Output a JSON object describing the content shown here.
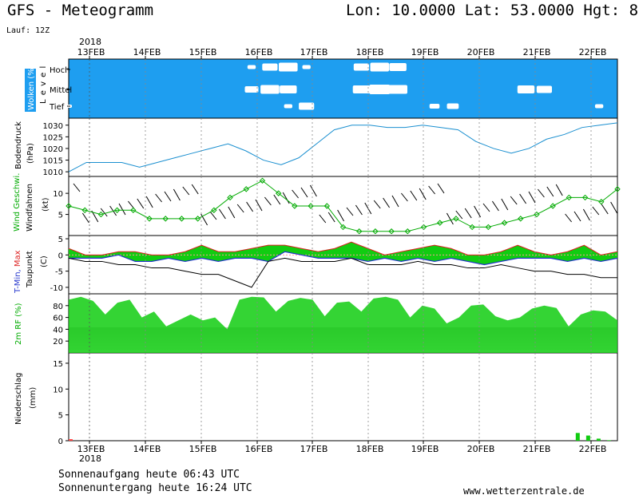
{
  "header": {
    "title": "GFS - Meteogramm",
    "location": "Lon: 10.0000 Lat: 53.0000 Hgt: 8",
    "run": "Lauf: 12Z"
  },
  "footer": {
    "sunrise": "Sonnenaufgang heute 06:43 UTC",
    "sunset": "Sonnenuntergang heute 16:24 UTC",
    "site": "www.wetterzentrale.de"
  },
  "colors": {
    "clouds_bg": "#1e9ef0",
    "line": "#1a8fd0",
    "green": "#11cc11",
    "green_dark": "#00aa00",
    "tmin": "#2233cc",
    "tmax": "#dd2222"
  },
  "time_axis": {
    "year": "2018",
    "dates": [
      "13FEB",
      "14FEB",
      "15FEB",
      "16FEB",
      "17FEB",
      "18FEB",
      "19FEB",
      "20FEB",
      "21FEB",
      "22FEB"
    ],
    "steps": 31
  },
  "chart_data": [
    {
      "type": "heatmap",
      "ylabel": "Wolken (%)",
      "levels": [
        "Hoch",
        "Mittel",
        "Tief"
      ],
      "side_label": "L e v e l",
      "series": [
        {
          "name": "Hoch",
          "values": [
            0,
            0,
            0,
            0,
            0,
            0,
            0,
            0,
            0,
            0,
            20,
            60,
            80,
            20,
            0,
            0,
            60,
            80,
            70,
            0,
            0,
            0,
            0,
            0,
            0,
            0,
            0,
            0,
            0,
            0,
            0
          ]
        },
        {
          "name": "Mittel",
          "values": [
            0,
            0,
            0,
            0,
            0,
            0,
            0,
            0,
            0,
            0,
            50,
            80,
            70,
            0,
            0,
            0,
            70,
            90,
            80,
            0,
            0,
            0,
            0,
            0,
            0,
            70,
            60,
            0,
            0,
            0,
            0
          ]
        },
        {
          "name": "Tief",
          "values": [
            10,
            0,
            0,
            0,
            0,
            0,
            0,
            0,
            0,
            0,
            0,
            0,
            20,
            60,
            0,
            0,
            0,
            0,
            0,
            0,
            30,
            40,
            0,
            0,
            0,
            0,
            0,
            0,
            0,
            20,
            0
          ]
        }
      ]
    },
    {
      "type": "line",
      "ylabel": "Bodendruck",
      "yunit": "(hPa)",
      "yticks": [
        1010,
        1015,
        1020,
        1025,
        1030
      ],
      "ylim": [
        1008,
        1033
      ],
      "values": [
        1010,
        1014,
        1014,
        1014,
        1012,
        1014,
        1016,
        1018,
        1020,
        1022,
        1019,
        1015,
        1013,
        1016,
        1022,
        1028,
        1030,
        1030,
        1029,
        1029,
        1030,
        1029,
        1028,
        1023,
        1020,
        1018,
        1020,
        1024,
        1026,
        1029,
        1030,
        1031
      ]
    },
    {
      "type": "line",
      "ylabel": "Wind Geschwi.",
      "ylabel2": "Windfahnen",
      "yunit": "(kt)",
      "yticks": [
        5,
        10
      ],
      "ylim": [
        0,
        14
      ],
      "values": [
        7,
        6,
        5,
        6,
        6,
        4,
        4,
        4,
        4,
        6,
        9,
        11,
        13,
        10,
        7,
        7,
        7,
        2,
        1,
        1,
        1,
        1,
        2,
        3,
        4,
        2,
        2,
        3,
        4,
        5,
        7,
        9,
        9,
        8,
        11
      ]
    },
    {
      "type": "area",
      "ylabel": "T-Min, Max",
      "ylabel2": "Taupunkt",
      "yunit": "(C)",
      "yticks": [
        5,
        0,
        -5,
        -10
      ],
      "ylim": [
        -12,
        6
      ],
      "series": [
        {
          "name": "T-Max",
          "values": [
            2,
            0,
            0,
            1,
            1,
            0,
            0,
            1,
            3,
            1,
            1,
            2,
            3,
            3,
            2,
            1,
            2,
            4,
            2,
            0,
            1,
            2,
            3,
            2,
            0,
            0,
            1,
            3,
            1,
            0,
            1,
            3,
            0,
            1
          ]
        },
        {
          "name": "T-Min",
          "values": [
            -1,
            -1,
            -1,
            0,
            -2,
            -2,
            -1,
            -2,
            -1,
            -2,
            -1,
            -1,
            -2,
            1,
            0,
            -1,
            -1,
            -1,
            -2,
            -1,
            -2,
            -1,
            -2,
            -1,
            -2,
            -3,
            -2,
            -1,
            -1,
            -1,
            -2,
            -1,
            -2,
            -1
          ]
        },
        {
          "name": "Taupunkt",
          "values": [
            -1,
            -2,
            -2,
            -3,
            -3,
            -4,
            -4,
            -5,
            -6,
            -6,
            -8,
            -10,
            -2,
            -1,
            -2,
            -2,
            -2,
            -1,
            -3,
            -3,
            -3,
            -2,
            -3,
            -3,
            -4,
            -4,
            -3,
            -4,
            -5,
            -5,
            -6,
            -6,
            -7,
            -7
          ]
        }
      ]
    },
    {
      "type": "area",
      "ylabel": "2m RF (%)",
      "yticks": [
        20,
        40,
        60,
        80
      ],
      "ylim": [
        0,
        100
      ],
      "values": [
        90,
        95,
        88,
        65,
        85,
        90,
        60,
        70,
        45,
        55,
        65,
        55,
        60,
        40,
        90,
        95,
        94,
        70,
        88,
        93,
        90,
        62,
        85,
        87,
        70,
        92,
        95,
        90,
        60,
        80,
        75,
        50,
        60,
        80,
        82,
        62,
        55,
        60,
        75,
        80,
        76,
        45,
        65,
        72,
        70,
        55
      ]
    },
    {
      "type": "bar",
      "ylabel": "Niederschlag",
      "yunit": "(mm)",
      "yticks": [
        0,
        5,
        10,
        15
      ],
      "ylim": [
        0,
        17
      ],
      "values": [
        0.3,
        0,
        0,
        0,
        0,
        0,
        0,
        0,
        0,
        0,
        0,
        0,
        0,
        0,
        0,
        0,
        0,
        0,
        0,
        0,
        0,
        0,
        0,
        0,
        0,
        0,
        0,
        0,
        0,
        0,
        0,
        0,
        1.5,
        1.0,
        0.4,
        0.1
      ]
    }
  ]
}
